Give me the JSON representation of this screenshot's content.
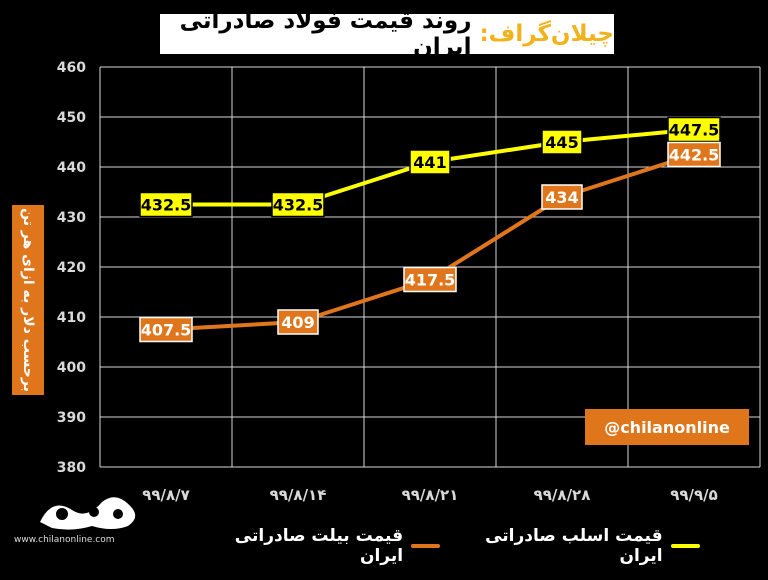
{
  "header": {
    "brand": "چیلان‌گراف:",
    "title": "روند قیمت فولاد صادراتی ایران"
  },
  "watermark": "@chilanonline",
  "logo": {
    "url": "www.chilanonline.com"
  },
  "colors": {
    "billet": "#e0761c",
    "slab": "#ffff00",
    "grid": "#d9d9d9",
    "axis_text": "#d9d9d9"
  },
  "chart_data": {
    "type": "line",
    "title": "روند قیمت فولاد صادراتی ایران",
    "ylabel": "برحسب دلار به ازای هر تن",
    "xlabel": "",
    "categories": [
      "۹۹/۸/۷",
      "۹۹/۸/۱۴",
      "۹۹/۸/۲۱",
      "۹۹/۸/۲۸",
      "۹۹/۹/۵"
    ],
    "ylim": [
      380,
      460
    ],
    "yticks": [
      380,
      390,
      400,
      410,
      420,
      430,
      440,
      450,
      460
    ],
    "grid": true,
    "legend_position": "bottom",
    "series": [
      {
        "name": "قیمت اسلب صادراتی ایران",
        "color": "#ffff00",
        "values": [
          432.5,
          432.5,
          441,
          445,
          447.5
        ],
        "labels": [
          "432.5",
          "432.5",
          "441",
          "445",
          "447.5"
        ]
      },
      {
        "name": "قیمت بیلت صادراتی ایران",
        "color": "#e0761c",
        "values": [
          407.5,
          409,
          417.5,
          434,
          442.5
        ],
        "labels": [
          "407.5",
          "409",
          "417.5",
          "434",
          "442.5"
        ]
      }
    ]
  }
}
